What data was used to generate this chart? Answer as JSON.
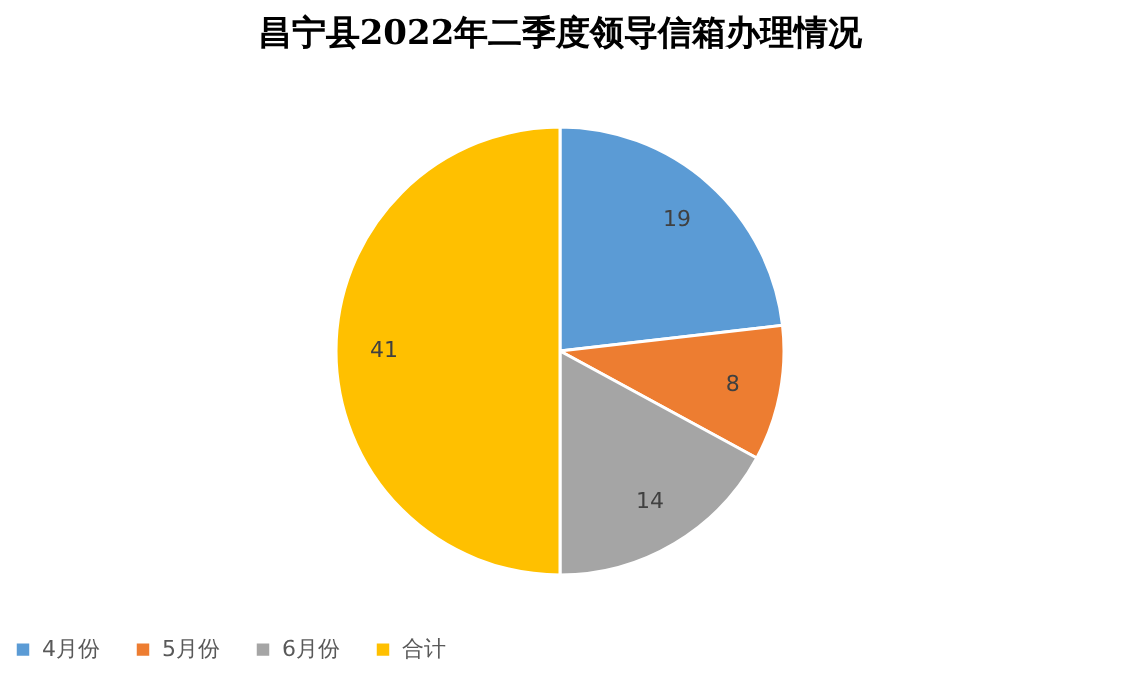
{
  "chart_data": {
    "type": "pie",
    "title": "昌宁县2022年二季度领导信箱办理情况",
    "categories": [
      "4月份",
      "5月份",
      "6月份",
      "合计"
    ],
    "values": [
      19,
      8,
      14,
      41
    ],
    "colors": [
      "#5b9bd5",
      "#ed7d31",
      "#a5a5a5",
      "#ffc000"
    ],
    "data_labels": true,
    "legend": "bottom"
  }
}
